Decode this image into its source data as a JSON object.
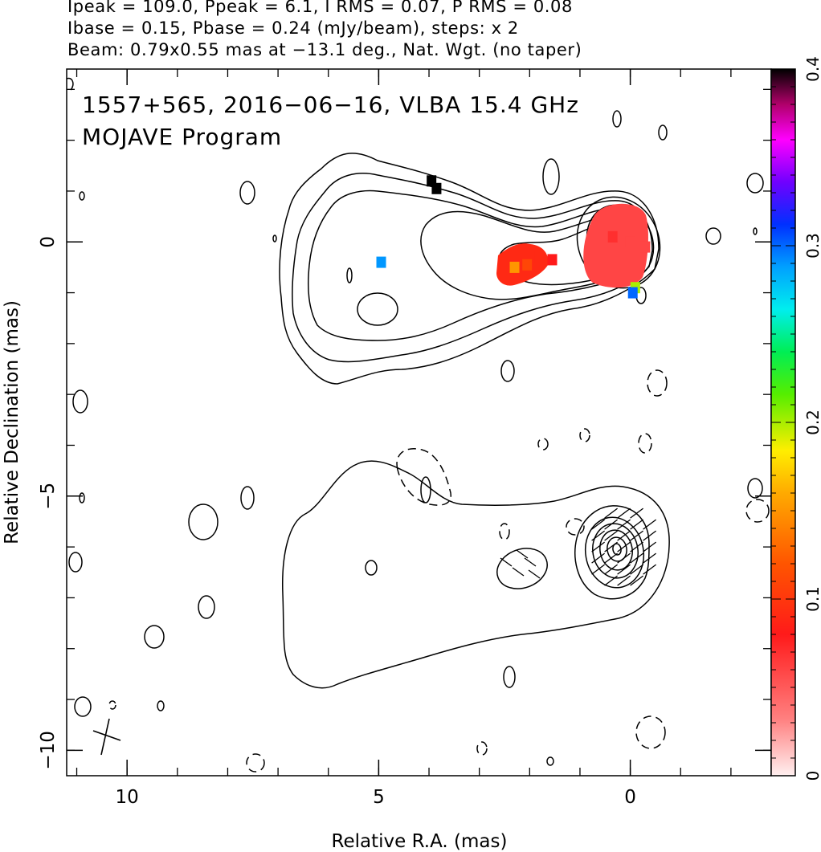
{
  "header": {
    "line1": "Ipeak = 109.0, Ppeak = 6.1, I RMS = 0.07, P RMS = 0.08",
    "line2": "Ibase = 0.15, Pbase = 0.24 (mJy/beam), steps: x 2",
    "line3": "Beam: 0.79x0.55 mas at −13.1 deg., Nat. Wgt. (no taper)"
  },
  "plot_title": {
    "line1": "1557+565, 2016−06−16, VLBA 15.4 GHz",
    "line2": "MOJAVE Program"
  },
  "colors": {
    "line": "#000000",
    "background": "#ffffff"
  },
  "chart_data": {
    "type": "heatmap",
    "xlabel": "Relative R.A. (mas)",
    "ylabel": "Relative Declination (mas)",
    "x_reversed": true,
    "xlim": [
      11.2,
      -2.8
    ],
    "ylim": [
      -10.5,
      3.4
    ],
    "x_ticks": [
      10,
      5,
      0
    ],
    "x_tick_labels": [
      "10",
      "5",
      "0"
    ],
    "y_ticks": [
      0,
      -5,
      -10
    ],
    "y_tick_labels": [
      "0",
      "−5",
      "−10"
    ],
    "colorbar": {
      "range": [
        0,
        0.4
      ],
      "ticks": [
        0,
        0.1,
        0.2,
        0.3,
        0.4
      ],
      "tick_labels": [
        "0",
        "0.1",
        "0.2",
        "0.3",
        "0.4"
      ]
    },
    "upper_map_center": [
      0,
      0
    ],
    "lower_map_center": [
      0,
      -6
    ],
    "polarization_pixels": [
      {
        "x": 3.95,
        "y": 1.2,
        "v": 0.4
      },
      {
        "x": 3.85,
        "y": 1.05,
        "v": 0.4
      },
      {
        "x": 4.95,
        "y": -0.4,
        "v": 0.29
      },
      {
        "x": 2.3,
        "y": -0.5,
        "v": 0.15
      },
      {
        "x": 2.05,
        "y": -0.45,
        "v": 0.11
      },
      {
        "x": 1.8,
        "y": -0.3,
        "v": 0.09
      },
      {
        "x": 1.55,
        "y": -0.35,
        "v": 0.08
      },
      {
        "x": 0.0,
        "y": 0.0,
        "v": 0.06
      },
      {
        "x": 0.35,
        "y": 0.1,
        "v": 0.07
      },
      {
        "x": -0.3,
        "y": -0.1,
        "v": 0.06
      },
      {
        "x": -0.1,
        "y": -0.9,
        "v": 0.2
      },
      {
        "x": -0.05,
        "y": -1.0,
        "v": 0.3
      }
    ]
  }
}
